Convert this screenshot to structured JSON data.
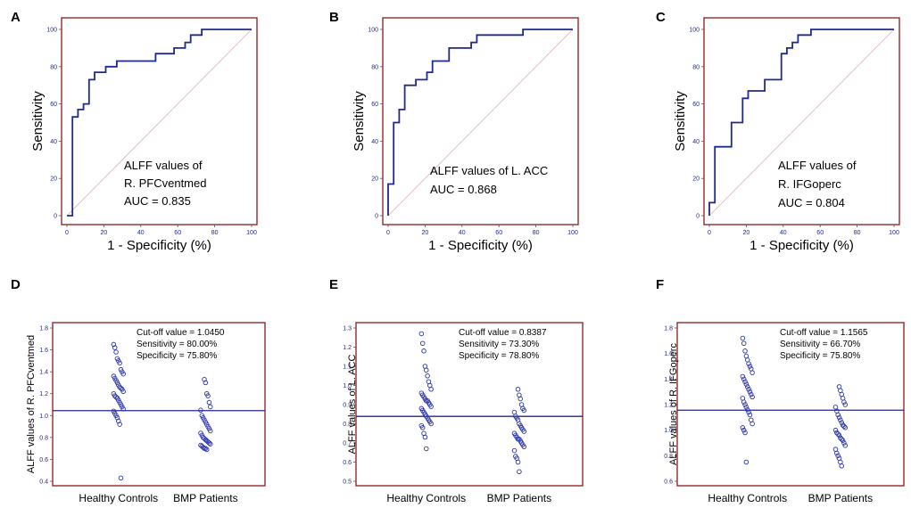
{
  "chart_data": [
    {
      "panel": "A",
      "type": "line",
      "xlabel": "1 - Specificity (%)",
      "ylabel": "Sensitivity",
      "xlim": [
        0,
        100
      ],
      "ylim": [
        0,
        100
      ],
      "xticks": [
        "0",
        "20",
        "40",
        "60",
        "80",
        "100"
      ],
      "yticks": [
        "0",
        "20",
        "40",
        "60",
        "80",
        "100"
      ],
      "annotation": [
        "ALFF values of",
        "R. PFCventmed",
        "AUC = 0.835"
      ],
      "roc": [
        [
          0,
          0
        ],
        [
          3,
          0
        ],
        [
          3,
          53
        ],
        [
          6,
          53
        ],
        [
          6,
          57
        ],
        [
          9,
          57
        ],
        [
          9,
          60
        ],
        [
          12,
          60
        ],
        [
          12,
          73
        ],
        [
          15,
          73
        ],
        [
          15,
          77
        ],
        [
          21,
          77
        ],
        [
          21,
          80
        ],
        [
          27,
          80
        ],
        [
          27,
          83
        ],
        [
          48,
          83
        ],
        [
          48,
          87
        ],
        [
          58,
          87
        ],
        [
          58,
          90
        ],
        [
          64,
          90
        ],
        [
          64,
          93
        ],
        [
          67,
          93
        ],
        [
          67,
          97
        ],
        [
          73,
          97
        ],
        [
          73,
          100
        ],
        [
          100,
          100
        ]
      ]
    },
    {
      "panel": "B",
      "type": "line",
      "xlabel": "1 - Specificity (%)",
      "ylabel": "Sensitivity",
      "xlim": [
        0,
        100
      ],
      "ylim": [
        0,
        100
      ],
      "xticks": [
        "0",
        "20",
        "40",
        "60",
        "80",
        "100"
      ],
      "yticks": [
        "0",
        "20",
        "40",
        "60",
        "80",
        "100"
      ],
      "annotation": [
        "ALFF values of L. ACC",
        "AUC = 0.868"
      ],
      "roc": [
        [
          0,
          0
        ],
        [
          0,
          17
        ],
        [
          3,
          17
        ],
        [
          3,
          50
        ],
        [
          6,
          50
        ],
        [
          6,
          57
        ],
        [
          9,
          57
        ],
        [
          9,
          70
        ],
        [
          15,
          70
        ],
        [
          15,
          73
        ],
        [
          21,
          73
        ],
        [
          21,
          77
        ],
        [
          24,
          77
        ],
        [
          24,
          83
        ],
        [
          33,
          83
        ],
        [
          33,
          90
        ],
        [
          45,
          90
        ],
        [
          45,
          93
        ],
        [
          48,
          93
        ],
        [
          48,
          97
        ],
        [
          73,
          97
        ],
        [
          73,
          100
        ],
        [
          100,
          100
        ]
      ]
    },
    {
      "panel": "C",
      "type": "line",
      "xlabel": "1 - Specificity (%)",
      "ylabel": "Sensitivity",
      "xlim": [
        0,
        100
      ],
      "ylim": [
        0,
        100
      ],
      "xticks": [
        "0",
        "20",
        "40",
        "60",
        "80",
        "100"
      ],
      "yticks": [
        "0",
        "20",
        "40",
        "60",
        "80",
        "100"
      ],
      "annotation": [
        "ALFF values of",
        "R. IFGoperc",
        "AUC = 0.804"
      ],
      "roc": [
        [
          0,
          0
        ],
        [
          0,
          7
        ],
        [
          3,
          7
        ],
        [
          3,
          37
        ],
        [
          12,
          37
        ],
        [
          12,
          50
        ],
        [
          18,
          50
        ],
        [
          18,
          63
        ],
        [
          21,
          63
        ],
        [
          21,
          67
        ],
        [
          30,
          67
        ],
        [
          30,
          73
        ],
        [
          39,
          73
        ],
        [
          39,
          87
        ],
        [
          42,
          87
        ],
        [
          42,
          90
        ],
        [
          45,
          90
        ],
        [
          45,
          93
        ],
        [
          48,
          93
        ],
        [
          48,
          97
        ],
        [
          55,
          97
        ],
        [
          55,
          100
        ],
        [
          100,
          100
        ]
      ]
    },
    {
      "panel": "D",
      "type": "scatter",
      "ylabel": "ALFF values of R. PFCventmed",
      "categories": [
        "Healthy Controls",
        "BMP Patients"
      ],
      "ylim": [
        0.4,
        1.8
      ],
      "yticks": [
        "0.4",
        "0.6",
        "0.8",
        "1.0",
        "1.2",
        "1.4",
        "1.6",
        "1.8"
      ],
      "cutoff": 1.045,
      "annotation": [
        "Cut-off value = 1.0450",
        "Sensitivity = 80.00%",
        "Specificity = 75.80%"
      ],
      "series": [
        {
          "name": "Healthy Controls",
          "values": [
            1.65,
            1.62,
            1.58,
            1.52,
            1.5,
            1.48,
            1.42,
            1.4,
            1.38,
            1.36,
            1.34,
            1.32,
            1.3,
            1.28,
            1.26,
            1.25,
            1.24,
            1.22,
            1.2,
            1.18,
            1.17,
            1.16,
            1.14,
            1.12,
            1.1,
            1.08,
            1.06,
            1.04,
            1.02,
            1.0,
            0.98,
            0.95,
            0.92,
            0.43
          ]
        },
        {
          "name": "BMP Patients",
          "values": [
            1.33,
            1.3,
            1.2,
            1.18,
            1.12,
            1.08,
            1.05,
            1.0,
            0.98,
            0.96,
            0.94,
            0.92,
            0.9,
            0.88,
            0.86,
            0.84,
            0.82,
            0.8,
            0.79,
            0.78,
            0.77,
            0.76,
            0.75,
            0.74,
            0.73,
            0.72,
            0.71,
            0.7,
            0.7,
            0.69
          ]
        }
      ]
    },
    {
      "panel": "E",
      "type": "scatter",
      "ylabel": "ALFF values of L. ACC",
      "categories": [
        "Healthy Controls",
        "BMP Patients"
      ],
      "ylim": [
        0.5,
        1.3
      ],
      "yticks": [
        "0.5",
        "0.6",
        "0.7",
        "0.8",
        "0.9",
        "1.0",
        "1.1",
        "1.2",
        "1.3"
      ],
      "cutoff": 0.8387,
      "annotation": [
        "Cut-off value = 0.8387",
        "Sensitivity = 73.30%",
        "Specificity = 78.80%"
      ],
      "series": [
        {
          "name": "Healthy Controls",
          "values": [
            1.27,
            1.22,
            1.18,
            1.1,
            1.08,
            1.05,
            1.02,
            1.0,
            0.98,
            0.96,
            0.95,
            0.94,
            0.93,
            0.92,
            0.92,
            0.91,
            0.9,
            0.89,
            0.88,
            0.87,
            0.86,
            0.85,
            0.84,
            0.83,
            0.82,
            0.81,
            0.8,
            0.79,
            0.78,
            0.75,
            0.73,
            0.67
          ]
        },
        {
          "name": "BMP Patients",
          "values": [
            0.98,
            0.95,
            0.93,
            0.9,
            0.88,
            0.87,
            0.86,
            0.84,
            0.83,
            0.82,
            0.8,
            0.79,
            0.78,
            0.77,
            0.76,
            0.75,
            0.74,
            0.73,
            0.72,
            0.72,
            0.71,
            0.7,
            0.69,
            0.68,
            0.66,
            0.63,
            0.62,
            0.6,
            0.55
          ]
        }
      ]
    },
    {
      "panel": "F",
      "type": "scatter",
      "ylabel": "ALFF values of R. IFGoperc",
      "categories": [
        "Healthy Controls",
        "BMP Patients"
      ],
      "ylim": [
        0.6,
        1.8
      ],
      "yticks": [
        "0.6",
        "0.8",
        "1.0",
        "1.2",
        "1.4",
        "1.6",
        "1.8"
      ],
      "cutoff": 1.1565,
      "annotation": [
        "Cut-off value = 1.1565",
        "Sensitivity = 66.70%",
        "Specificity = 75.80%"
      ],
      "series": [
        {
          "name": "Healthy Controls",
          "values": [
            1.72,
            1.68,
            1.62,
            1.58,
            1.55,
            1.52,
            1.5,
            1.48,
            1.45,
            1.42,
            1.4,
            1.38,
            1.36,
            1.34,
            1.32,
            1.3,
            1.28,
            1.26,
            1.25,
            1.22,
            1.2,
            1.18,
            1.16,
            1.14,
            1.12,
            1.08,
            1.05,
            1.02,
            1.0,
            0.98,
            0.75
          ]
        },
        {
          "name": "BMP Patients",
          "values": [
            1.34,
            1.31,
            1.28,
            1.25,
            1.22,
            1.2,
            1.18,
            1.15,
            1.12,
            1.1,
            1.08,
            1.06,
            1.04,
            1.03,
            1.02,
            1.0,
            0.98,
            0.97,
            0.96,
            0.94,
            0.93,
            0.92,
            0.9,
            0.88,
            0.85,
            0.82,
            0.8,
            0.78,
            0.75,
            0.72
          ]
        }
      ]
    }
  ]
}
